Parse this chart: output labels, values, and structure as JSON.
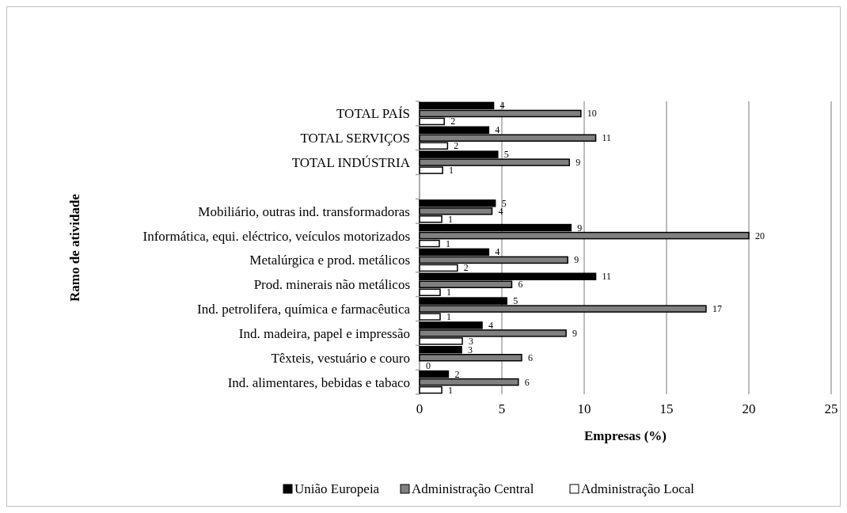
{
  "chart_data": {
    "type": "bar",
    "orientation": "horizontal",
    "xlabel": "Empresas (%)",
    "ylabel": "Ramo de atividade",
    "categories": [
      "TOTAL PAÍS",
      "TOTAL SERVIÇOS",
      "TOTAL INDÚSTRIA",
      null,
      "Mobiliário, outras ind. transformadoras",
      "Informática, equi. eléctrico, veículos motorizados",
      "Metalúrgica e prod. metálicos",
      "Prod. minerais não metálicos",
      "Ind. petrolifera, química e farmacêutica",
      "Ind. madeira, papel e impressão",
      "Têxteis, vestuário e couro",
      "Ind. alimentares, bebidas e tabaco"
    ],
    "series": [
      {
        "name": "União Europeia",
        "color": "#000000",
        "values": [
          4.5,
          4.2,
          4.75,
          null,
          4.6,
          9.2,
          4.2,
          10.7,
          5.3,
          3.8,
          2.55,
          1.75
        ],
        "value_labels": [
          "4",
          "4",
          "5",
          null,
          "5",
          "9",
          "4",
          "11",
          "5",
          "4",
          "3",
          "2"
        ]
      },
      {
        "name": "Administração Central",
        "color": "#808080",
        "values": [
          9.8,
          10.7,
          9.1,
          null,
          4.4,
          20.0,
          9.0,
          5.6,
          17.4,
          8.9,
          6.2,
          6.0
        ],
        "value_labels": [
          "10",
          "11",
          "9",
          null,
          "4",
          "20",
          "9",
          "6",
          "17",
          "9",
          "6",
          "6"
        ]
      },
      {
        "name": "Administração Local",
        "color": "#ffffff",
        "values": [
          1.5,
          1.7,
          1.4,
          null,
          1.35,
          1.2,
          2.3,
          1.25,
          1.25,
          2.6,
          0,
          1.35
        ],
        "value_labels": [
          "2",
          "2",
          "1",
          null,
          "1",
          "1",
          "2",
          "1",
          "1",
          "3",
          "0",
          "1"
        ]
      }
    ],
    "xlim": [
      0,
      25
    ],
    "xticks": [
      0,
      5,
      10,
      15,
      20,
      25
    ],
    "grid": "x",
    "legend": "bottom"
  }
}
